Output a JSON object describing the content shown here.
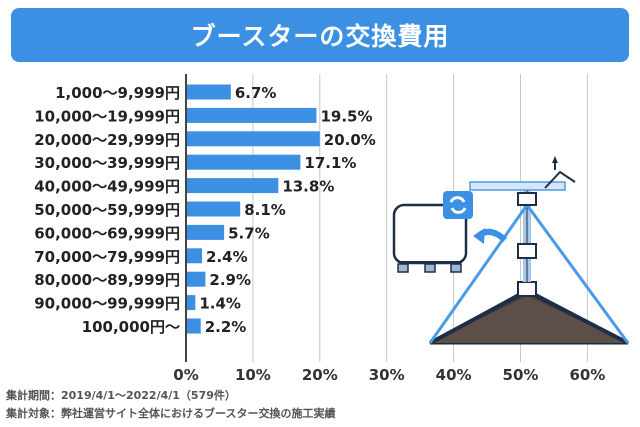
{
  "title": "ブースターの交換費用",
  "chart_data": {
    "type": "bar",
    "orientation": "horizontal",
    "categories": [
      "1,000〜9,999円",
      "10,000〜19,999円",
      "20,000〜29,999円",
      "30,000〜39,999円",
      "40,000〜49,999円",
      "50,000〜59,999円",
      "60,000〜69,999円",
      "70,000〜79,999円",
      "80,000〜89,999円",
      "90,000〜99,999円",
      "100,000円〜"
    ],
    "values": [
      6.7,
      19.5,
      20.0,
      17.1,
      13.8,
      8.1,
      5.7,
      2.4,
      2.9,
      1.4,
      2.2
    ],
    "value_labels": [
      "6.7%",
      "19.5%",
      "20.0%",
      "17.1%",
      "13.8%",
      "8.1%",
      "5.7%",
      "2.4%",
      "2.9%",
      "1.4%",
      "2.2%"
    ],
    "xlim": [
      0,
      60
    ],
    "xticks": [
      "0%",
      "10%",
      "20%",
      "30%",
      "40%",
      "50%",
      "60%"
    ],
    "grid": true,
    "bar_color": "#3c90e4"
  },
  "notes": {
    "period": "集計期間：2019/4/1〜2022/4/1（579件）",
    "target": "集計対象：弊社運営サイト全体におけるブースター交換の施工実績"
  },
  "illustration": {
    "icon": "booster-antenna-roof-icon"
  }
}
